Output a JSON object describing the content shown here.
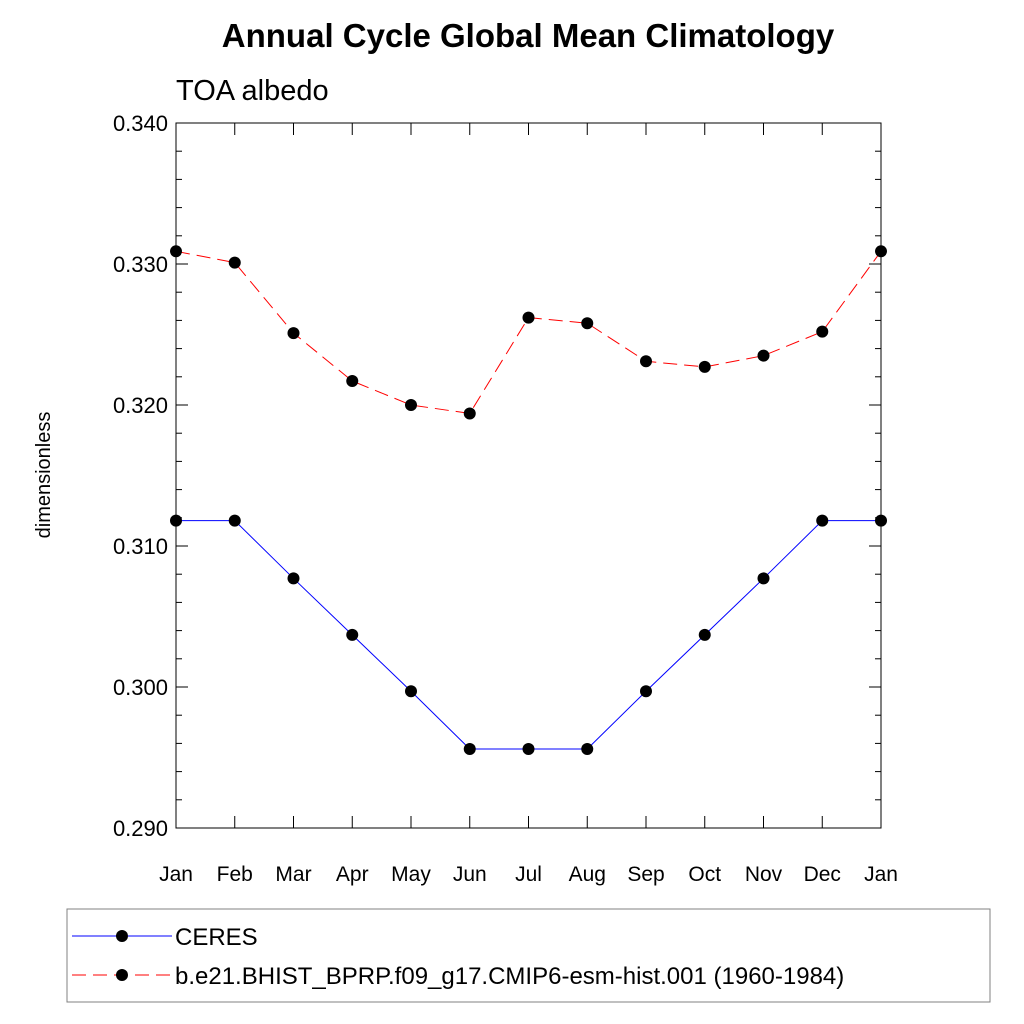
{
  "chart_data": {
    "type": "line",
    "title": "Annual Cycle Global Mean Climatology",
    "subtitle": "TOA albedo",
    "xlabel": "",
    "ylabel": "dimensionless",
    "categories": [
      "Jan",
      "Feb",
      "Mar",
      "Apr",
      "May",
      "Jun",
      "Jul",
      "Aug",
      "Sep",
      "Oct",
      "Nov",
      "Dec",
      "Jan"
    ],
    "ylim": [
      0.29,
      0.34
    ],
    "yticks": [
      "0.290",
      "0.300",
      "0.310",
      "0.320",
      "0.330",
      "0.340"
    ],
    "legend_position": "bottom",
    "grid": false,
    "series": [
      {
        "name": "CERES",
        "color": "#0000ff",
        "line_style": "solid",
        "marker": "filled-circle",
        "values": [
          0.3118,
          0.3118,
          0.3077,
          0.3037,
          0.2997,
          0.2956,
          0.2956,
          0.2956,
          0.2997,
          0.3037,
          0.3077,
          0.3118,
          0.3118
        ]
      },
      {
        "name": "b.e21.BHIST_BPRP.f09_g17.CMIP6-esm-hist.001 (1960-1984)",
        "color": "#ff0000",
        "line_style": "dashed",
        "marker": "filled-circle",
        "values": [
          0.3309,
          0.3301,
          0.3251,
          0.3217,
          0.32,
          0.3194,
          0.3262,
          0.3258,
          0.3231,
          0.3227,
          0.3235,
          0.3252,
          0.3309
        ]
      }
    ]
  }
}
